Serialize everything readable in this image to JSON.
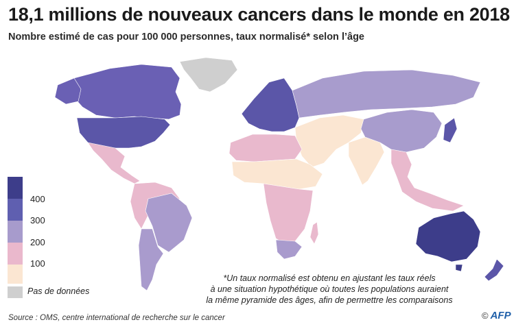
{
  "title": "18,1 millions de nouveaux cancers dans le monde en 2018",
  "subtitle": "Nombre estimé de cas pour 100 000 personnes, taux normalisé* selon l’âge",
  "legend": {
    "colors": [
      "#3d3d8a",
      "#5f5fb0",
      "#a79bcc",
      "#eab8cc",
      "#fbe6d2"
    ],
    "ticks": [
      "400",
      "300",
      "200",
      "100"
    ],
    "nodata_label": "Pas de données",
    "nodata_color": "#cfcfcf"
  },
  "footnote": {
    "line1": "*Un taux normalisé est obtenu en ajustant les taux réels",
    "line2": "à une situation hypothétique où toutes les populations auraient",
    "line3": "la même pyramide des âges, afin de permettre les comparaisons"
  },
  "source": "Source : OMS, centre international de recherche sur le cancer",
  "credit": {
    "symbol": "©",
    "logo": "AFP"
  },
  "regions": [
    {
      "name": "north-america",
      "class": "300-400"
    },
    {
      "name": "greenland",
      "class": "no-data"
    },
    {
      "name": "mexico-central-america",
      "class": "100-200"
    },
    {
      "name": "south-america",
      "class": "100-200"
    },
    {
      "name": "brazil",
      "class": "200-300"
    },
    {
      "name": "argentina",
      "class": "200-300"
    },
    {
      "name": "western-europe",
      "class": "300-400"
    },
    {
      "name": "russia",
      "class": "200-300"
    },
    {
      "name": "north-africa",
      "class": "100-200"
    },
    {
      "name": "sahel",
      "class": "0-100"
    },
    {
      "name": "central-africa",
      "class": "100-200"
    },
    {
      "name": "south-africa",
      "class": "200-300"
    },
    {
      "name": "middle-east",
      "class": "0-100"
    },
    {
      "name": "india",
      "class": "0-100"
    },
    {
      "name": "china",
      "class": "200-300"
    },
    {
      "name": "south-east-asia",
      "class": "100-200"
    },
    {
      "name": "australia",
      "class": "400+"
    },
    {
      "name": "new-zealand",
      "class": "300-400"
    }
  ]
}
